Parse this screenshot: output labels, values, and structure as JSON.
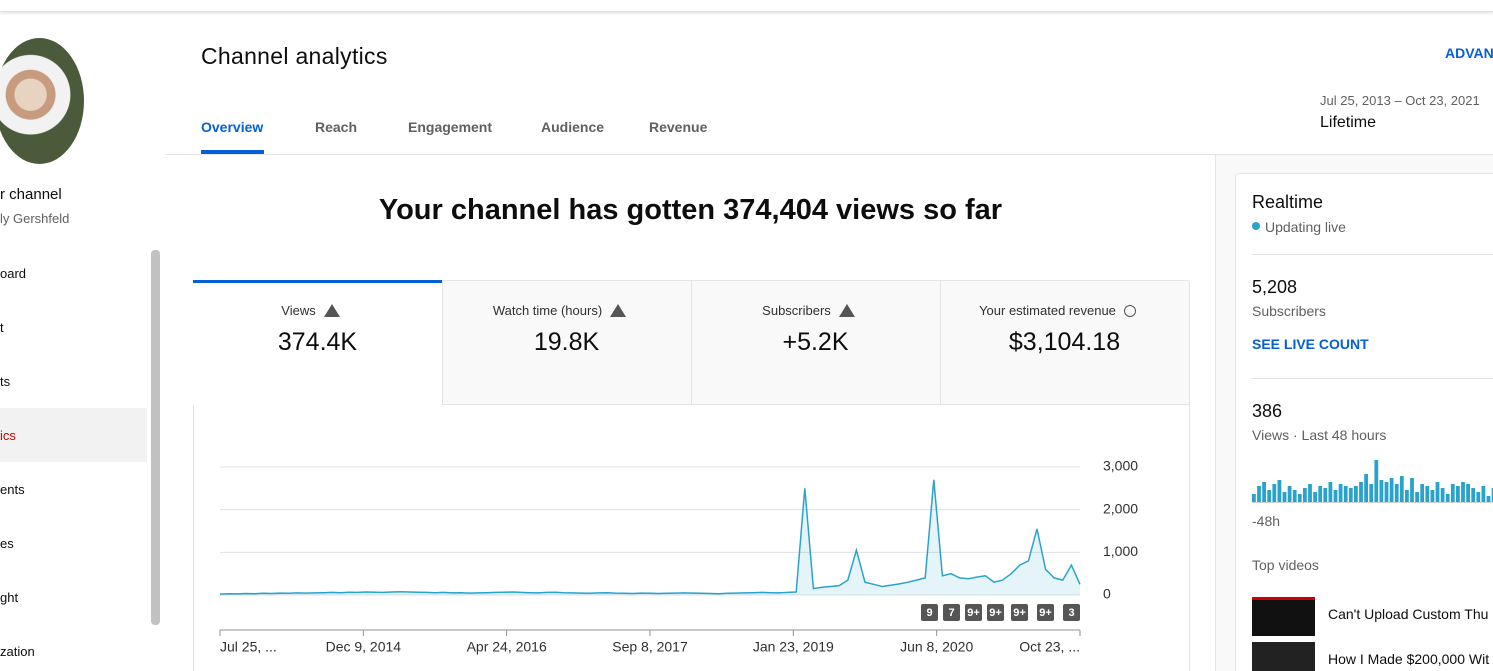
{
  "sidebar": {
    "channel_label": "r channel",
    "channel_owner": "ly Gershfeld",
    "nav": [
      "oard",
      "t",
      "ts",
      "ics",
      "ents",
      "es",
      "ght",
      "zation"
    ]
  },
  "header": {
    "title": "Channel analytics",
    "advanced": "ADVAN",
    "tabs": [
      "Overview",
      "Reach",
      "Engagement",
      "Audience",
      "Revenue"
    ],
    "date_range": "Jul 25, 2013 – Oct 23, 2021",
    "period": "Lifetime"
  },
  "headline": "Your channel has gotten 374,404 views so far",
  "metrics": [
    {
      "label": "Views",
      "value": "374.4K"
    },
    {
      "label": "Watch time (hours)",
      "value": "19.8K"
    },
    {
      "label": "Subscribers",
      "value": "+5.2K"
    },
    {
      "label": "Your estimated revenue",
      "value": "$3,104.18"
    }
  ],
  "chart_data": {
    "type": "line",
    "color": "#2aa3cc",
    "x_labels": [
      "Jul 25, ...",
      "Dec 9, 2014",
      "Apr 24, 2016",
      "Sep 8, 2017",
      "Jan 23, 2019",
      "Jun 8, 2020",
      "Oct 23, ..."
    ],
    "values": [
      20,
      30,
      25,
      35,
      30,
      40,
      35,
      45,
      40,
      50,
      45,
      50,
      55,
      60,
      55,
      65,
      60,
      70,
      65,
      60,
      70,
      75,
      70,
      65,
      60,
      55,
      60,
      50,
      55,
      45,
      50,
      55,
      60,
      65,
      70,
      60,
      55,
      50,
      60,
      65,
      55,
      50,
      45,
      40,
      50,
      55,
      45,
      40,
      35,
      45,
      40,
      35,
      40,
      45,
      50,
      45,
      40,
      35,
      30,
      40,
      45,
      50,
      55,
      60,
      55,
      50,
      60,
      70,
      2500,
      150,
      180,
      200,
      220,
      350,
      1050,
      300,
      250,
      200,
      230,
      260,
      300,
      350,
      400,
      2700,
      450,
      500,
      400,
      380,
      420,
      450,
      300,
      350,
      500,
      700,
      800,
      1550,
      600,
      400,
      350,
      700,
      250
    ],
    "ylim": [
      0,
      3000
    ],
    "yticks": [
      0,
      {
        "value": 1000,
        "label": "1,000"
      },
      {
        "value": 2000,
        "label": "2,000"
      },
      {
        "value": 3000,
        "label": "3,000"
      }
    ],
    "badges": [
      "9",
      "7",
      "9+",
      "9+",
      "9+",
      "9+",
      "3"
    ]
  },
  "realtime": {
    "title": "Realtime",
    "status": "Updating live",
    "subscribers": "5,208",
    "subscribers_label": "Subscribers",
    "live_count": "SEE LIVE COUNT",
    "views": "386",
    "views_label": "Views · Last 48 hours",
    "bars": [
      4,
      8,
      10,
      6,
      9,
      11,
      5,
      8,
      6,
      4,
      7,
      9,
      5,
      8,
      7,
      10,
      6,
      9,
      8,
      7,
      8,
      10,
      14,
      9,
      21,
      11,
      10,
      12,
      9,
      13,
      6,
      12,
      5,
      9,
      8,
      6,
      10,
      7,
      4,
      9,
      8,
      10,
      9,
      7,
      5,
      8,
      3,
      7
    ],
    "bars_label": "-48h",
    "top_videos": "Top videos",
    "videos": [
      "Can't Upload Custom Thu",
      "How I Made $200,000 Wit"
    ]
  }
}
